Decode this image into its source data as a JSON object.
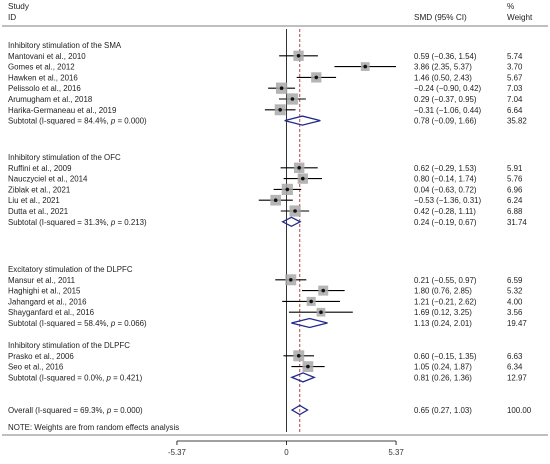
{
  "chart_data": {
    "type": "forest",
    "header": {
      "study_line1": "Study",
      "study_line2": "ID",
      "effect_col": "SMD (95% CI)",
      "weight_line1": "%",
      "weight_line2": "Weight"
    },
    "x_axis": {
      "range": [
        -5.37,
        5.37
      ],
      "tick_labels": [
        "-5.37",
        "0",
        "5.37"
      ],
      "ticks": [
        -5.37,
        0,
        5.37
      ]
    },
    "reference_line": 0,
    "overall_effect_line": 0.65,
    "groups": [
      {
        "title": "Inhibitory stimulation of the SMA",
        "studies": [
          {
            "id": "Mantovani et al., 2010",
            "smd": 0.59,
            "lo": -0.36,
            "hi": 1.54,
            "ci_text": "0.59 (−0.36, 1.54)",
            "weight": "5.74"
          },
          {
            "id": "Gomes et al., 2012",
            "smd": 3.86,
            "lo": 2.35,
            "hi": 5.37,
            "ci_text": "3.86 (2.35, 5.37)",
            "weight": "3.70"
          },
          {
            "id": "Hawken et al., 2016",
            "smd": 1.46,
            "lo": 0.5,
            "hi": 2.43,
            "ci_text": "1.46 (0.50, 2.43)",
            "weight": "5.67"
          },
          {
            "id": "Pelissolo et al., 2016",
            "smd": -0.24,
            "lo": -0.9,
            "hi": 0.42,
            "ci_text": "−0.24 (−0.90, 0.42)",
            "weight": "7.03"
          },
          {
            "id": "Arumugham et al., 2018",
            "smd": 0.29,
            "lo": -0.37,
            "hi": 0.95,
            "ci_text": "0.29 (−0.37, 0.95)",
            "weight": "7.04"
          },
          {
            "id": "Harika-Germaneau et al., 2019",
            "smd": -0.31,
            "lo": -1.06,
            "hi": 0.44,
            "ci_text": "−0.31 (−1.06, 0.44)",
            "weight": "6.64"
          }
        ],
        "subtotal": {
          "label": "Subtotal  (I-squared = 84.4%, ",
          "p_label": "p",
          "p_text": " = 0.000)",
          "smd": 0.78,
          "lo": -0.09,
          "hi": 1.66,
          "ci_text": "0.78 (−0.09, 1.66)",
          "weight": "35.82"
        }
      },
      {
        "title": "Inhibitory stimulation of the OFC",
        "studies": [
          {
            "id": "Ruffini et al., 2009",
            "smd": 0.62,
            "lo": -0.29,
            "hi": 1.53,
            "ci_text": "0.62 (−0.29, 1.53)",
            "weight": "5.91"
          },
          {
            "id": "Nauczyciel et al., 2014",
            "smd": 0.8,
            "lo": -0.14,
            "hi": 1.74,
            "ci_text": "0.80 (−0.14, 1.74)",
            "weight": "5.76"
          },
          {
            "id": "Ziblak et al., 2021",
            "smd": 0.04,
            "lo": -0.63,
            "hi": 0.72,
            "ci_text": "0.04 (−0.63, 0.72)",
            "weight": "6.96"
          },
          {
            "id": "Liu et al., 2021",
            "smd": -0.53,
            "lo": -1.36,
            "hi": 0.31,
            "ci_text": "−0.53 (−1.36, 0.31)",
            "weight": "6.24"
          },
          {
            "id": "Dutta et al., 2021",
            "smd": 0.42,
            "lo": -0.28,
            "hi": 1.11,
            "ci_text": "0.42 (−0.28, 1.11)",
            "weight": "6.88"
          }
        ],
        "subtotal": {
          "label": "Subtotal  (I-squared = 31.3%, ",
          "p_label": "p",
          "p_text": " = 0.213)",
          "smd": 0.24,
          "lo": -0.19,
          "hi": 0.67,
          "ci_text": "0.24 (−0.19, 0.67)",
          "weight": "31.74"
        }
      },
      {
        "title": "Excitatory stimulation of the DLPFC",
        "studies": [
          {
            "id": "Mansur et al., 2011",
            "smd": 0.21,
            "lo": -0.55,
            "hi": 0.97,
            "ci_text": "0.21 (−0.55, 0.97)",
            "weight": "6.59"
          },
          {
            "id": "Haghighi et al., 2015",
            "smd": 1.8,
            "lo": 0.76,
            "hi": 2.85,
            "ci_text": "1.80 (0.76, 2.85)",
            "weight": "5.32"
          },
          {
            "id": "Jahangard et al., 2016",
            "smd": 1.21,
            "lo": -0.21,
            "hi": 2.62,
            "ci_text": "1.21 (−0.21, 2.62)",
            "weight": "4.00"
          },
          {
            "id": "Shayganfard et al., 2016",
            "smd": 1.69,
            "lo": 0.12,
            "hi": 3.25,
            "ci_text": "1.69 (0.12, 3.25)",
            "weight": "3.56"
          }
        ],
        "subtotal": {
          "label": "Subtotal  (I-squared = 58.4%, ",
          "p_label": "p",
          "p_text": " = 0.066)",
          "smd": 1.13,
          "lo": 0.24,
          "hi": 2.01,
          "ci_text": "1.13 (0.24, 2.01)",
          "weight": "19.47"
        }
      },
      {
        "title": "Inhibitory stimulation of the DLPFC",
        "studies": [
          {
            "id": "Prasko et al., 2006",
            "smd": 0.6,
            "lo": -0.15,
            "hi": 1.35,
            "ci_text": "0.60 (−0.15, 1.35)",
            "weight": "6.63"
          },
          {
            "id": "Seo et al., 2016",
            "smd": 1.05,
            "lo": 0.24,
            "hi": 1.87,
            "ci_text": "1.05 (0.24, 1.87)",
            "weight": "6.34"
          }
        ],
        "subtotal": {
          "label": "Subtotal  (I-squared = 0.0%, ",
          "p_label": "p",
          "p_text": " = 0.421)",
          "smd": 0.81,
          "lo": 0.26,
          "hi": 1.36,
          "ci_text": "0.81 (0.26, 1.36)",
          "weight": "12.97"
        }
      }
    ],
    "overall": {
      "label": "Overall  (I-squared = 69.3%, ",
      "p_label": "p",
      "p_text": " = 0.000)",
      "smd": 0.65,
      "lo": 0.27,
      "hi": 1.03,
      "ci_text": "0.65 (0.27, 1.03)",
      "weight": "100.00"
    },
    "note": "NOTE: Weights are from random effects analysis",
    "colors": {
      "diamond": "#1f2a8a",
      "effect_line": "#b03030",
      "square": "#a8a8a8",
      "point": "#111111",
      "text": "#222222",
      "rule": "#555555"
    }
  }
}
